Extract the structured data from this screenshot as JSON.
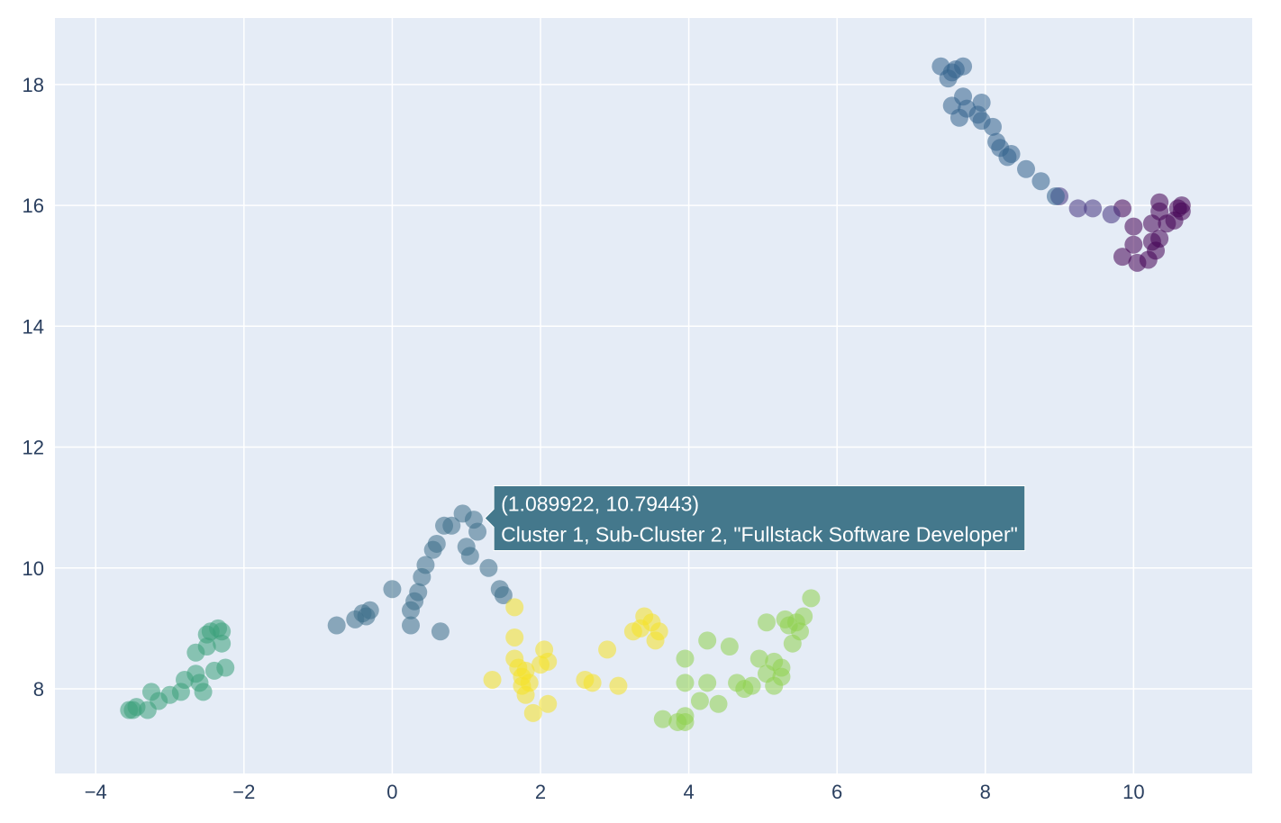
{
  "chart_data": {
    "type": "scatter",
    "title": "",
    "xlabel": "",
    "ylabel": "",
    "xlim": [
      -4.55,
      11.6
    ],
    "ylim": [
      6.6,
      19.1
    ],
    "x_ticks": [
      -4,
      -2,
      0,
      2,
      4,
      6,
      8,
      10
    ],
    "y_ticks": [
      8,
      10,
      12,
      14,
      16,
      18
    ],
    "grid": true,
    "plot_bg": "#e5ecf6",
    "marker_opacity": 0.55,
    "series": [
      {
        "color": "#440154",
        "points": [
          [
            9.85,
            15.95
          ],
          [
            10.0,
            15.65
          ],
          [
            10.0,
            15.35
          ],
          [
            9.85,
            15.15
          ],
          [
            10.05,
            15.05
          ],
          [
            10.2,
            15.1
          ],
          [
            10.25,
            15.4
          ],
          [
            10.35,
            15.45
          ],
          [
            10.3,
            15.25
          ],
          [
            10.25,
            15.7
          ],
          [
            10.35,
            16.05
          ],
          [
            10.35,
            15.9
          ],
          [
            10.45,
            15.7
          ],
          [
            10.55,
            15.75
          ],
          [
            10.6,
            15.95
          ],
          [
            10.65,
            16.0
          ],
          [
            10.65,
            15.9
          ]
        ]
      },
      {
        "color": "#463480",
        "points": [
          [
            9.0,
            16.15
          ],
          [
            9.25,
            15.95
          ],
          [
            9.45,
            15.95
          ],
          [
            9.7,
            15.85
          ]
        ]
      },
      {
        "color": "#33638d",
        "points": [
          [
            7.4,
            18.3
          ],
          [
            7.5,
            18.1
          ],
          [
            7.55,
            18.2
          ],
          [
            7.6,
            18.25
          ],
          [
            7.7,
            18.3
          ],
          [
            7.55,
            17.65
          ],
          [
            7.65,
            17.45
          ],
          [
            7.7,
            17.8
          ],
          [
            7.75,
            17.6
          ],
          [
            7.9,
            17.5
          ],
          [
            7.95,
            17.7
          ],
          [
            7.95,
            17.4
          ],
          [
            8.1,
            17.3
          ],
          [
            8.15,
            17.05
          ],
          [
            8.2,
            16.95
          ],
          [
            8.3,
            16.8
          ],
          [
            8.35,
            16.85
          ],
          [
            8.55,
            16.6
          ],
          [
            8.75,
            16.4
          ],
          [
            8.95,
            16.15
          ]
        ]
      },
      {
        "color": "#3c6e89",
        "points": [
          [
            -0.75,
            9.05
          ],
          [
            -0.5,
            9.15
          ],
          [
            -0.4,
            9.25
          ],
          [
            -0.35,
            9.2
          ],
          [
            -0.3,
            9.3
          ],
          [
            0.0,
            9.65
          ],
          [
            0.25,
            9.05
          ],
          [
            0.25,
            9.3
          ],
          [
            0.3,
            9.45
          ],
          [
            0.35,
            9.6
          ],
          [
            0.4,
            9.85
          ],
          [
            0.45,
            10.05
          ],
          [
            0.55,
            10.3
          ],
          [
            0.6,
            10.4
          ],
          [
            0.7,
            10.7
          ],
          [
            0.8,
            10.7
          ],
          [
            0.95,
            10.9
          ],
          [
            1.0,
            10.35
          ],
          [
            1.05,
            10.2
          ],
          [
            1.1,
            10.8
          ],
          [
            1.15,
            10.6
          ],
          [
            1.3,
            10.0
          ],
          [
            1.45,
            9.65
          ],
          [
            1.5,
            9.55
          ],
          [
            0.65,
            8.95
          ]
        ]
      },
      {
        "color": "#3aa17a",
        "points": [
          [
            -3.55,
            7.65
          ],
          [
            -3.5,
            7.65
          ],
          [
            -3.45,
            7.7
          ],
          [
            -3.3,
            7.65
          ],
          [
            -3.25,
            7.95
          ],
          [
            -3.15,
            7.8
          ],
          [
            -3.0,
            7.9
          ],
          [
            -2.85,
            7.95
          ],
          [
            -2.8,
            8.15
          ],
          [
            -2.65,
            8.25
          ],
          [
            -2.6,
            8.1
          ],
          [
            -2.55,
            7.95
          ],
          [
            -2.65,
            8.6
          ],
          [
            -2.5,
            8.7
          ],
          [
            -2.5,
            8.9
          ],
          [
            -2.45,
            8.95
          ],
          [
            -2.35,
            9.0
          ],
          [
            -2.3,
            8.95
          ],
          [
            -2.3,
            8.75
          ],
          [
            -2.4,
            8.3
          ],
          [
            -2.25,
            8.35
          ]
        ]
      },
      {
        "color": "#f5e127",
        "points": [
          [
            1.35,
            8.15
          ],
          [
            1.65,
            9.35
          ],
          [
            1.65,
            8.85
          ],
          [
            1.65,
            8.5
          ],
          [
            1.7,
            8.35
          ],
          [
            1.75,
            8.2
          ],
          [
            1.75,
            8.05
          ],
          [
            1.8,
            8.3
          ],
          [
            1.8,
            7.9
          ],
          [
            1.85,
            8.1
          ],
          [
            1.9,
            7.6
          ],
          [
            2.0,
            8.4
          ],
          [
            2.05,
            8.65
          ],
          [
            2.1,
            8.45
          ],
          [
            2.1,
            7.75
          ],
          [
            2.6,
            8.15
          ],
          [
            2.7,
            8.1
          ],
          [
            2.9,
            8.65
          ],
          [
            3.05,
            8.05
          ],
          [
            3.25,
            8.95
          ],
          [
            3.35,
            9.0
          ],
          [
            3.4,
            9.2
          ],
          [
            3.5,
            9.1
          ],
          [
            3.55,
            8.8
          ],
          [
            3.6,
            8.95
          ]
        ]
      },
      {
        "color": "#8fd14f",
        "points": [
          [
            3.65,
            7.5
          ],
          [
            3.85,
            7.45
          ],
          [
            3.95,
            7.55
          ],
          [
            3.95,
            7.45
          ],
          [
            3.95,
            8.1
          ],
          [
            3.95,
            8.5
          ],
          [
            4.15,
            7.8
          ],
          [
            4.25,
            8.1
          ],
          [
            4.25,
            8.8
          ],
          [
            4.4,
            7.75
          ],
          [
            4.55,
            8.7
          ],
          [
            4.65,
            8.1
          ],
          [
            4.75,
            8.0
          ],
          [
            4.85,
            8.05
          ],
          [
            4.95,
            8.5
          ],
          [
            5.05,
            8.25
          ],
          [
            5.05,
            9.1
          ],
          [
            5.15,
            8.45
          ],
          [
            5.15,
            8.05
          ],
          [
            5.25,
            8.35
          ],
          [
            5.25,
            8.2
          ],
          [
            5.3,
            9.15
          ],
          [
            5.35,
            9.05
          ],
          [
            5.4,
            8.75
          ],
          [
            5.45,
            9.1
          ],
          [
            5.5,
            8.95
          ],
          [
            5.55,
            9.2
          ],
          [
            5.65,
            9.5
          ]
        ]
      }
    ],
    "hover": {
      "point": [
        1.089922,
        10.79443
      ],
      "line1": "(1.089922, 10.79443)",
      "line2": "Cluster 1, Sub-Cluster 2, \"Fullstack Software Developer\"",
      "bg": "#44788c"
    }
  }
}
